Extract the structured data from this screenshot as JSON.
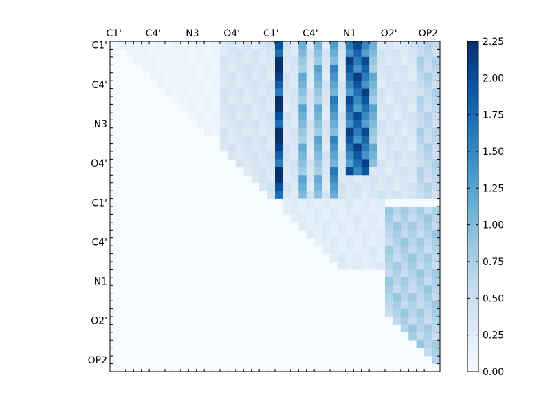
{
  "chart_data": {
    "type": "heatmap",
    "title": "",
    "xlabel": "",
    "ylabel": "",
    "colormap": "Blues",
    "color_low": "#f7fbff",
    "color_high": "#08306b",
    "vmin": 0.0,
    "vmax": 2.25,
    "n_rows": 42,
    "n_cols": 42,
    "x_tick_labels": [
      "C1'",
      "C4'",
      "N3",
      "O4'",
      "C1'",
      "C4'",
      "N1",
      "O2'",
      "OP2"
    ],
    "y_tick_labels": [
      "C1'",
      "C4'",
      "N3",
      "O4'",
      "C1'",
      "C4'",
      "N1",
      "O2'",
      "OP2"
    ],
    "label_step": 5,
    "colorbar_ticks": [
      "0.00",
      "0.25",
      "0.50",
      "0.75",
      "1.00",
      "1.25",
      "1.50",
      "1.75",
      "2.00",
      "2.25"
    ],
    "colorbar_values": [
      0,
      0.25,
      0.5,
      0.75,
      1.0,
      1.25,
      1.5,
      1.75,
      2.0,
      2.25
    ],
    "upper_triangle_only": true,
    "regions": [
      {
        "rows": [
          0,
          11
        ],
        "cols": [
          1,
          13
        ],
        "value": 0.12
      },
      {
        "rows": [
          0,
          19
        ],
        "cols": [
          14,
          41
        ],
        "value": 0.35
      },
      {
        "rows": [
          0,
          19
        ],
        "cols": [
          21,
          21
        ],
        "value": 2.1
      },
      {
        "rows": [
          0,
          19
        ],
        "cols": [
          24,
          24
        ],
        "value": 1.0
      },
      {
        "rows": [
          0,
          19
        ],
        "cols": [
          26,
          26
        ],
        "value": 1.0
      },
      {
        "rows": [
          0,
          19
        ],
        "cols": [
          28,
          28
        ],
        "value": 1.3
      },
      {
        "rows": [
          0,
          16
        ],
        "cols": [
          30,
          32
        ],
        "value": 1.7
      },
      {
        "rows": [
          0,
          15
        ],
        "cols": [
          33,
          33
        ],
        "value": 1.0
      },
      {
        "rows": [
          0,
          19
        ],
        "cols": [
          39,
          41
        ],
        "value": 0.6
      },
      {
        "rows": [
          21,
          40
        ],
        "cols": [
          35,
          41
        ],
        "value": 0.7
      },
      {
        "rows": [
          20,
          28
        ],
        "cols": [
          22,
          34
        ],
        "value": 0.25
      }
    ]
  }
}
